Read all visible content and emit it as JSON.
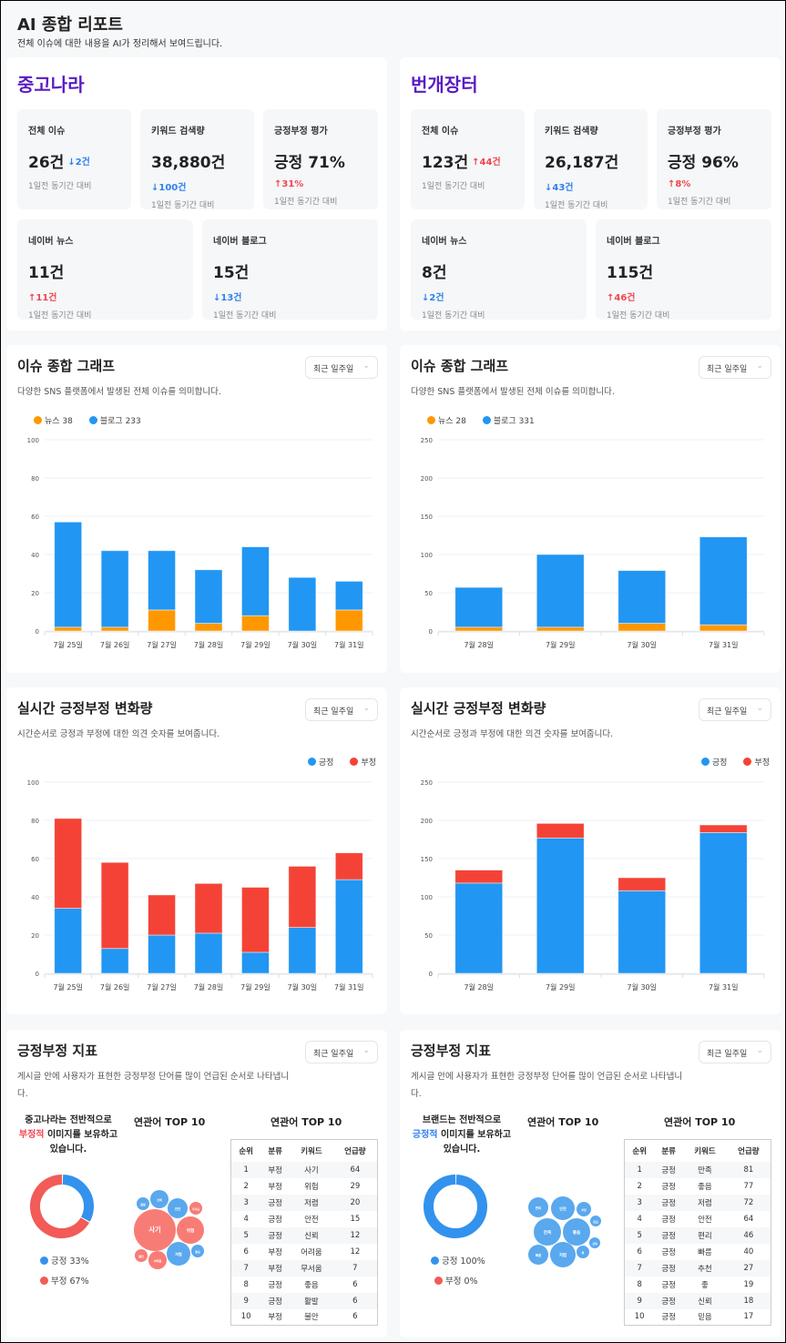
{
  "header": {
    "title": "AI 종합 리포트",
    "subtitle": "전체 이슈에 대한 내용을 AI가 정리해서 보여드립니다."
  },
  "colors": {
    "brand_title": "#5a1cc4",
    "blue": "#2196f3",
    "orange": "#ff9800",
    "red": "#f44336",
    "up": "#f0464f",
    "down": "#2f80ed"
  },
  "dropdown_label": "최근 일주일",
  "brands": [
    {
      "name": "중고나라",
      "stats": [
        {
          "label": "전체 이슈",
          "value": "26건",
          "change": "2건",
          "dir": "down",
          "note": "1일전 동기간 대비"
        },
        {
          "label": "키워드 검색량",
          "value": "38,880건",
          "change": "100건",
          "dir": "down",
          "note": "1일전 동기간 대비"
        },
        {
          "label": "긍정부정 평가",
          "value": "긍정 71%",
          "change": "31%",
          "dir": "up",
          "note": "1일전 동기간 대비"
        },
        {
          "label": "네이버 뉴스",
          "value": "11건",
          "change": "11건",
          "dir": "up",
          "note": "1일전 동기간 대비"
        },
        {
          "label": "네이버 블로그",
          "value": "15건",
          "change": "13건",
          "dir": "down",
          "note": "1일전 동기간 대비"
        }
      ],
      "issue_panel": {
        "title": "이슈 종합 그래프",
        "subtitle": "다양한 SNS 플랫폼에서 발생된 전체 이슈를 의미합니다.",
        "legend": [
          "뉴스 38",
          "블로그 233"
        ]
      },
      "sentiment_panel": {
        "title": "실시간 긍정부정 변화량",
        "subtitle": "시간순서로 긍정과 부정에 대한 의견 숫자를 보여줍니다.",
        "legend": [
          "긍정",
          "부정"
        ]
      },
      "indicator": {
        "title": "긍정부정 지표",
        "subtitle": "게시글 안에 사용자가 표현한 긍정부정 단어를 많이 언급된 순서로 나타냅니다.",
        "summary_prefix": "중고나라는 전반적으로",
        "summary_highlight": "부정적",
        "summary_suffix": " 이미지를 보유하고 있습니다.",
        "tone": "neg",
        "positive_pct": 33,
        "negative_pct": 67,
        "legend_pos": "긍정 33%",
        "legend_neg": "부정 67%",
        "bubble_title": "연관어 TOP 10",
        "table_title": "연관어 TOP 10",
        "columns": [
          "순위",
          "분류",
          "키워드",
          "언급량"
        ],
        "rows": [
          [
            "1",
            "부정",
            "사기",
            "64"
          ],
          [
            "2",
            "부정",
            "위험",
            "29"
          ],
          [
            "3",
            "긍정",
            "저렴",
            "20"
          ],
          [
            "4",
            "긍정",
            "안전",
            "15"
          ],
          [
            "5",
            "긍정",
            "신뢰",
            "12"
          ],
          [
            "6",
            "부정",
            "어려움",
            "12"
          ],
          [
            "7",
            "부정",
            "무서움",
            "7"
          ],
          [
            "8",
            "긍정",
            "좋음",
            "6"
          ],
          [
            "9",
            "긍정",
            "활발",
            "6"
          ],
          [
            "10",
            "부정",
            "불안",
            "6"
          ]
        ]
      }
    },
    {
      "name": "번개장터",
      "stats": [
        {
          "label": "전체 이슈",
          "value": "123건",
          "change": "44건",
          "dir": "up",
          "note": "1일전 동기간 대비"
        },
        {
          "label": "키워드 검색량",
          "value": "26,187건",
          "change": "43건",
          "dir": "down",
          "note": "1일전 동기간 대비"
        },
        {
          "label": "긍정부정 평가",
          "value": "긍정 96%",
          "change": "8%",
          "dir": "up",
          "note": "1일전 동기간 대비"
        },
        {
          "label": "네이버 뉴스",
          "value": "8건",
          "change": "2건",
          "dir": "down",
          "note": "1일전 동기간 대비"
        },
        {
          "label": "네이버 블로그",
          "value": "115건",
          "change": "46건",
          "dir": "up",
          "note": "1일전 동기간 대비"
        }
      ],
      "issue_panel": {
        "title": "이슈 종합 그래프",
        "subtitle": "다양한 SNS 플랫폼에서 발생된 전체 이슈를 의미합니다.",
        "legend": [
          "뉴스 28",
          "블로그 331"
        ]
      },
      "sentiment_panel": {
        "title": "실시간 긍정부정 변화량",
        "subtitle": "시간순서로 긍정과 부정에 대한 의견 숫자를 보여줍니다.",
        "legend": [
          "긍정",
          "부정"
        ]
      },
      "indicator": {
        "title": "긍정부정 지표",
        "subtitle": "게시글 안에 사용자가 표현한 긍정부정 단어를 많이 언급된 순서로 나타냅니다.",
        "summary_prefix": "브랜드는 전반적으로",
        "summary_highlight": "긍정적",
        "summary_suffix": " 이미지를 보유하고 있습니다.",
        "tone": "pos",
        "positive_pct": 100,
        "negative_pct": 0,
        "legend_pos": "긍정 100%",
        "legend_neg": "부정 0%",
        "bubble_title": "연관어 TOP 10",
        "table_title": "연관어 TOP 10",
        "columns": [
          "순위",
          "분류",
          "키워드",
          "언급량"
        ],
        "rows": [
          [
            "1",
            "긍정",
            "만족",
            "81"
          ],
          [
            "2",
            "긍정",
            "좋음",
            "77"
          ],
          [
            "3",
            "긍정",
            "저렴",
            "72"
          ],
          [
            "4",
            "긍정",
            "안전",
            "64"
          ],
          [
            "5",
            "긍정",
            "편리",
            "46"
          ],
          [
            "6",
            "긍정",
            "빠름",
            "40"
          ],
          [
            "7",
            "긍정",
            "추천",
            "27"
          ],
          [
            "8",
            "긍정",
            "좋",
            "19"
          ],
          [
            "9",
            "긍정",
            "신뢰",
            "18"
          ],
          [
            "10",
            "긍정",
            "믿음",
            "17"
          ]
        ]
      }
    }
  ],
  "chart_data": [
    {
      "type": "bar",
      "stacked": true,
      "categories": [
        "7월 25일",
        "7월 26일",
        "7월 27일",
        "7월 28일",
        "7월 29일",
        "7월 30일",
        "7월 31일"
      ],
      "series": [
        {
          "name": "뉴스",
          "color": "#ff9800",
          "values": [
            2,
            2,
            11,
            4,
            8,
            0,
            11
          ]
        },
        {
          "name": "블로그",
          "color": "#2196f3",
          "values": [
            55,
            40,
            31,
            28,
            36,
            28,
            15
          ]
        }
      ],
      "ylim": [
        0,
        100
      ],
      "yticks": [
        0,
        20,
        40,
        60,
        80,
        100
      ],
      "grid": true,
      "legend": "top-left"
    },
    {
      "type": "bar",
      "stacked": true,
      "categories": [
        "7월 28일",
        "7월 29일",
        "7월 30일",
        "7월 31일"
      ],
      "series": [
        {
          "name": "뉴스",
          "color": "#ff9800",
          "values": [
            5,
            5,
            10,
            8
          ]
        },
        {
          "name": "블로그",
          "color": "#2196f3",
          "values": [
            52,
            95,
            69,
            115
          ]
        }
      ],
      "ylim": [
        0,
        250
      ],
      "yticks": [
        0,
        50,
        100,
        150,
        200,
        250
      ],
      "grid": true,
      "legend": "top-left"
    },
    {
      "type": "bar",
      "stacked": true,
      "categories": [
        "7월 25일",
        "7월 26일",
        "7월 27일",
        "7월 28일",
        "7월 29일",
        "7월 30일",
        "7월 31일"
      ],
      "series": [
        {
          "name": "긍정",
          "color": "#2196f3",
          "values": [
            34,
            13,
            20,
            21,
            11,
            24,
            49
          ]
        },
        {
          "name": "부정",
          "color": "#f44336",
          "values": [
            47,
            45,
            21,
            26,
            34,
            32,
            14
          ]
        }
      ],
      "ylim": [
        0,
        100
      ],
      "yticks": [
        0,
        20,
        40,
        60,
        80,
        100
      ],
      "grid": true,
      "legend": "top-right"
    },
    {
      "type": "bar",
      "stacked": true,
      "categories": [
        "7월 28일",
        "7월 29일",
        "7월 30일",
        "7월 31일"
      ],
      "series": [
        {
          "name": "긍정",
          "color": "#2196f3",
          "values": [
            118,
            177,
            108,
            184
          ]
        },
        {
          "name": "부정",
          "color": "#f44336",
          "values": [
            17,
            19,
            17,
            10
          ]
        }
      ],
      "ylim": [
        0,
        250
      ],
      "yticks": [
        0,
        50,
        100,
        150,
        200,
        250
      ],
      "grid": true,
      "legend": "top-right"
    }
  ]
}
